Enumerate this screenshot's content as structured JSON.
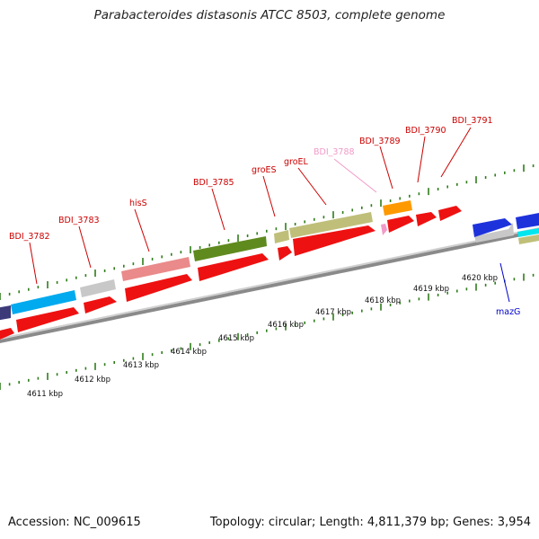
{
  "title": "Parabacteroides distasonis ATCC 8503, complete genome",
  "accession": "Accession: NC_009615",
  "summary": "Topology: circular; Length: 4,811,379 bp; Genes: 3,954",
  "colors": {
    "label_red": "#cc0000",
    "label_pink": "#f19ac8",
    "label_blue": "#0000cc",
    "tick_green": "#2e7d1a",
    "backbone": "#888888"
  },
  "scale_labels": [
    "4611 kbp",
    "4612 kbp",
    "4613 kbp",
    "4614 kbp",
    "4615 kbp",
    "4616 kbp",
    "4617 kbp",
    "4618 kbp",
    "4619 kbp",
    "4620 kbp"
  ],
  "gene_labels": [
    {
      "text": "BDI_3782",
      "color": "#cc0000"
    },
    {
      "text": "BDI_3783",
      "color": "#cc0000"
    },
    {
      "text": "hisS",
      "color": "#cc0000"
    },
    {
      "text": "BDI_3785",
      "color": "#cc0000"
    },
    {
      "text": "groES",
      "color": "#cc0000"
    },
    {
      "text": "groEL",
      "color": "#cc0000"
    },
    {
      "text": "BDI_3788",
      "color": "#f19ac8"
    },
    {
      "text": "BDI_3789",
      "color": "#cc0000"
    },
    {
      "text": "BDI_3790",
      "color": "#cc0000"
    },
    {
      "text": "BDI_3791",
      "color": "#cc0000"
    },
    {
      "text": "mazG",
      "color": "#0000cc"
    }
  ]
}
